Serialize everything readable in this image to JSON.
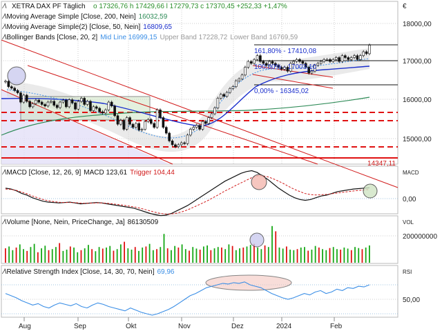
{
  "chart_data": [
    {
      "panel": "price",
      "type": "candlestick",
      "currency": "€",
      "header": {
        "symbol": "XETRA DAX PF",
        "interval": "Täglich",
        "ohlc_text": "o 17326,76  h 17429,66  l 17279,73  c 17370,45  +252,33  +1,47%"
      },
      "legend": [
        {
          "label": "Moving Average Simple [Close, 200, Nein]",
          "value": "16032,59",
          "color": "#2e8b57"
        },
        {
          "label": "Moving Average Simple(2) [Close, 50, Nein]",
          "value": "16809,65",
          "color": "#1a2ecc"
        },
        {
          "label": "Bollinger Bands [Close, 20, 2]",
          "parts": [
            {
              "text": "Mid Line 16999,15",
              "color": "#3a8ee6"
            },
            {
              "text": "Upper Band 17228,72",
              "color": "#9a9a9a"
            },
            {
              "text": "Lower Band 16769,59",
              "color": "#9a9a9a"
            }
          ]
        }
      ],
      "yticks": [
        "18000,00",
        "17000,00",
        "16000,00",
        "15000,00"
      ],
      "yrange": [
        14300,
        18500
      ],
      "fib_labels": [
        "161,80% - 17410,08",
        "100,00% - 17003,10",
        "0,00% - 16345,02"
      ],
      "last_label": "14347,11",
      "close_series": [
        16440,
        16300,
        16260,
        16200,
        16140,
        15900,
        16080,
        15920,
        15780,
        15860,
        15950,
        15900,
        15840,
        15800,
        15900,
        15920,
        15820,
        15760,
        15900,
        15950,
        15780,
        15960,
        15880,
        15720,
        15920,
        16000,
        15840,
        15920,
        15680,
        15780,
        15740,
        15650,
        15620,
        15700,
        15900,
        15800,
        15550,
        15330,
        15430,
        15200,
        15500,
        15330,
        15250,
        15350,
        15180,
        15200,
        15400,
        15450,
        15350,
        15250,
        15700,
        15500,
        15250,
        15100,
        14900,
        14800,
        14750,
        14800,
        14850,
        14830,
        15050,
        15200,
        15250,
        15300,
        15200,
        15400,
        15350,
        15500,
        15600,
        15750,
        16000,
        16100,
        16050,
        16150,
        16250,
        16300,
        16450,
        16500,
        16600,
        16800,
        16950,
        16900,
        17000,
        17100,
        16950,
        16900,
        16850,
        16950,
        16900,
        16850,
        16800,
        16750,
        16800,
        16700,
        16900,
        16950,
        17000,
        16950,
        16900,
        16800,
        16650,
        16700,
        16850,
        16900,
        16950,
        17000,
        17000,
        16950,
        17000,
        17050,
        16950,
        17100,
        17050,
        17000,
        17050,
        17100,
        17000,
        17100,
        17200,
        17150,
        17370
      ]
    },
    {
      "panel": "macd",
      "type": "line",
      "legend": "MACD [Close, 12, 26, 9]",
      "value": "MACD 123,61",
      "trigger": "Trigger 104,44",
      "right_label": "MACD",
      "yticks": [
        "0,00"
      ],
      "series": [
        {
          "values": [
            120,
            110,
            90,
            60,
            40,
            10,
            -10,
            -30,
            -40,
            -45,
            -50,
            -45,
            -40,
            -50,
            -60,
            -55,
            -50,
            -45,
            -50,
            -60,
            -70,
            -80,
            -90,
            -100,
            -110,
            -130,
            -150,
            -170,
            -185,
            -195,
            -190,
            -170,
            -140,
            -110,
            -80,
            -40,
            0,
            40,
            80,
            120,
            160,
            200,
            230,
            260,
            290,
            310,
            320,
            300,
            260,
            220,
            170,
            120,
            80,
            40,
            10,
            -10,
            -20,
            -10,
            10,
            30,
            40,
            60,
            80,
            90,
            100,
            110,
            115,
            120,
            124
          ]
        },
        {
          "values": [
            110,
            105,
            95,
            75,
            55,
            30,
            10,
            -10,
            -25,
            -35,
            -42,
            -45,
            -44,
            -46,
            -52,
            -54,
            -52,
            -50,
            -50,
            -54,
            -60,
            -67,
            -76,
            -85,
            -95,
            -108,
            -124,
            -141,
            -157,
            -171,
            -178,
            -176,
            -166,
            -150,
            -130,
            -102,
            -74,
            -46,
            -16,
            18,
            52,
            88,
            118,
            150,
            180,
            210,
            240,
            260,
            262,
            250,
            228,
            200,
            170,
            136,
            105,
            80,
            58,
            46,
            42,
            44,
            48,
            56,
            64,
            72,
            80,
            88,
            94,
            100,
            104
          ]
        }
      ]
    },
    {
      "panel": "volume",
      "type": "bar",
      "legend": "Volume [None, Nein, PriceChange, Ja]",
      "value": "86130509",
      "right_label": "VOL",
      "yticks": [
        "200000000"
      ],
      "values": [
        55,
        62,
        48,
        58,
        70,
        52,
        45,
        60,
        72,
        40,
        55,
        65,
        48,
        52,
        60,
        75,
        45,
        50,
        62,
        58,
        40,
        48,
        55,
        68,
        52,
        44,
        60,
        54,
        58,
        64,
        46,
        52,
        70,
        80,
        55,
        50,
        60,
        45,
        58,
        62,
        72,
        48,
        52,
        60,
        110,
        55,
        48,
        64,
        58,
        70,
        52,
        46,
        60,
        54,
        50,
        62,
        66,
        48,
        55,
        60,
        58,
        52,
        70,
        64,
        48,
        55,
        58,
        62,
        68,
        72,
        58,
        52,
        66,
        60,
        140,
        120,
        58,
        54,
        62,
        50,
        48,
        52,
        58,
        60,
        46,
        50,
        64,
        58,
        52,
        48,
        56,
        60,
        52,
        50,
        58,
        54,
        48,
        60,
        56,
        52,
        58,
        66
      ]
    },
    {
      "panel": "rsi",
      "type": "line",
      "legend": "Relative Strength Index [Close, 14, 30, 70, Nein]",
      "value": "69,96",
      "right_label": "RSI",
      "yticks": [
        "50,00"
      ],
      "levels": [
        70,
        30
      ],
      "values": [
        58,
        55,
        52,
        48,
        45,
        42,
        44,
        40,
        38,
        42,
        45,
        43,
        41,
        44,
        40,
        38,
        42,
        45,
        43,
        40,
        38,
        36,
        34,
        38,
        35,
        32,
        30,
        28,
        30,
        33,
        36,
        40,
        45,
        50,
        55,
        58,
        62,
        66,
        68,
        70,
        72,
        71,
        73,
        72,
        74,
        70,
        68,
        66,
        62,
        58,
        55,
        52,
        50,
        52,
        55,
        58,
        56,
        60,
        62,
        58,
        60,
        64,
        62,
        66,
        65,
        68,
        67,
        70
      ]
    },
    {
      "panel": "x-axis",
      "type": "labels",
      "months": [
        "Aug",
        "Sep",
        "Okt",
        "Nov",
        "Dez",
        "2024",
        "Feb"
      ]
    }
  ]
}
